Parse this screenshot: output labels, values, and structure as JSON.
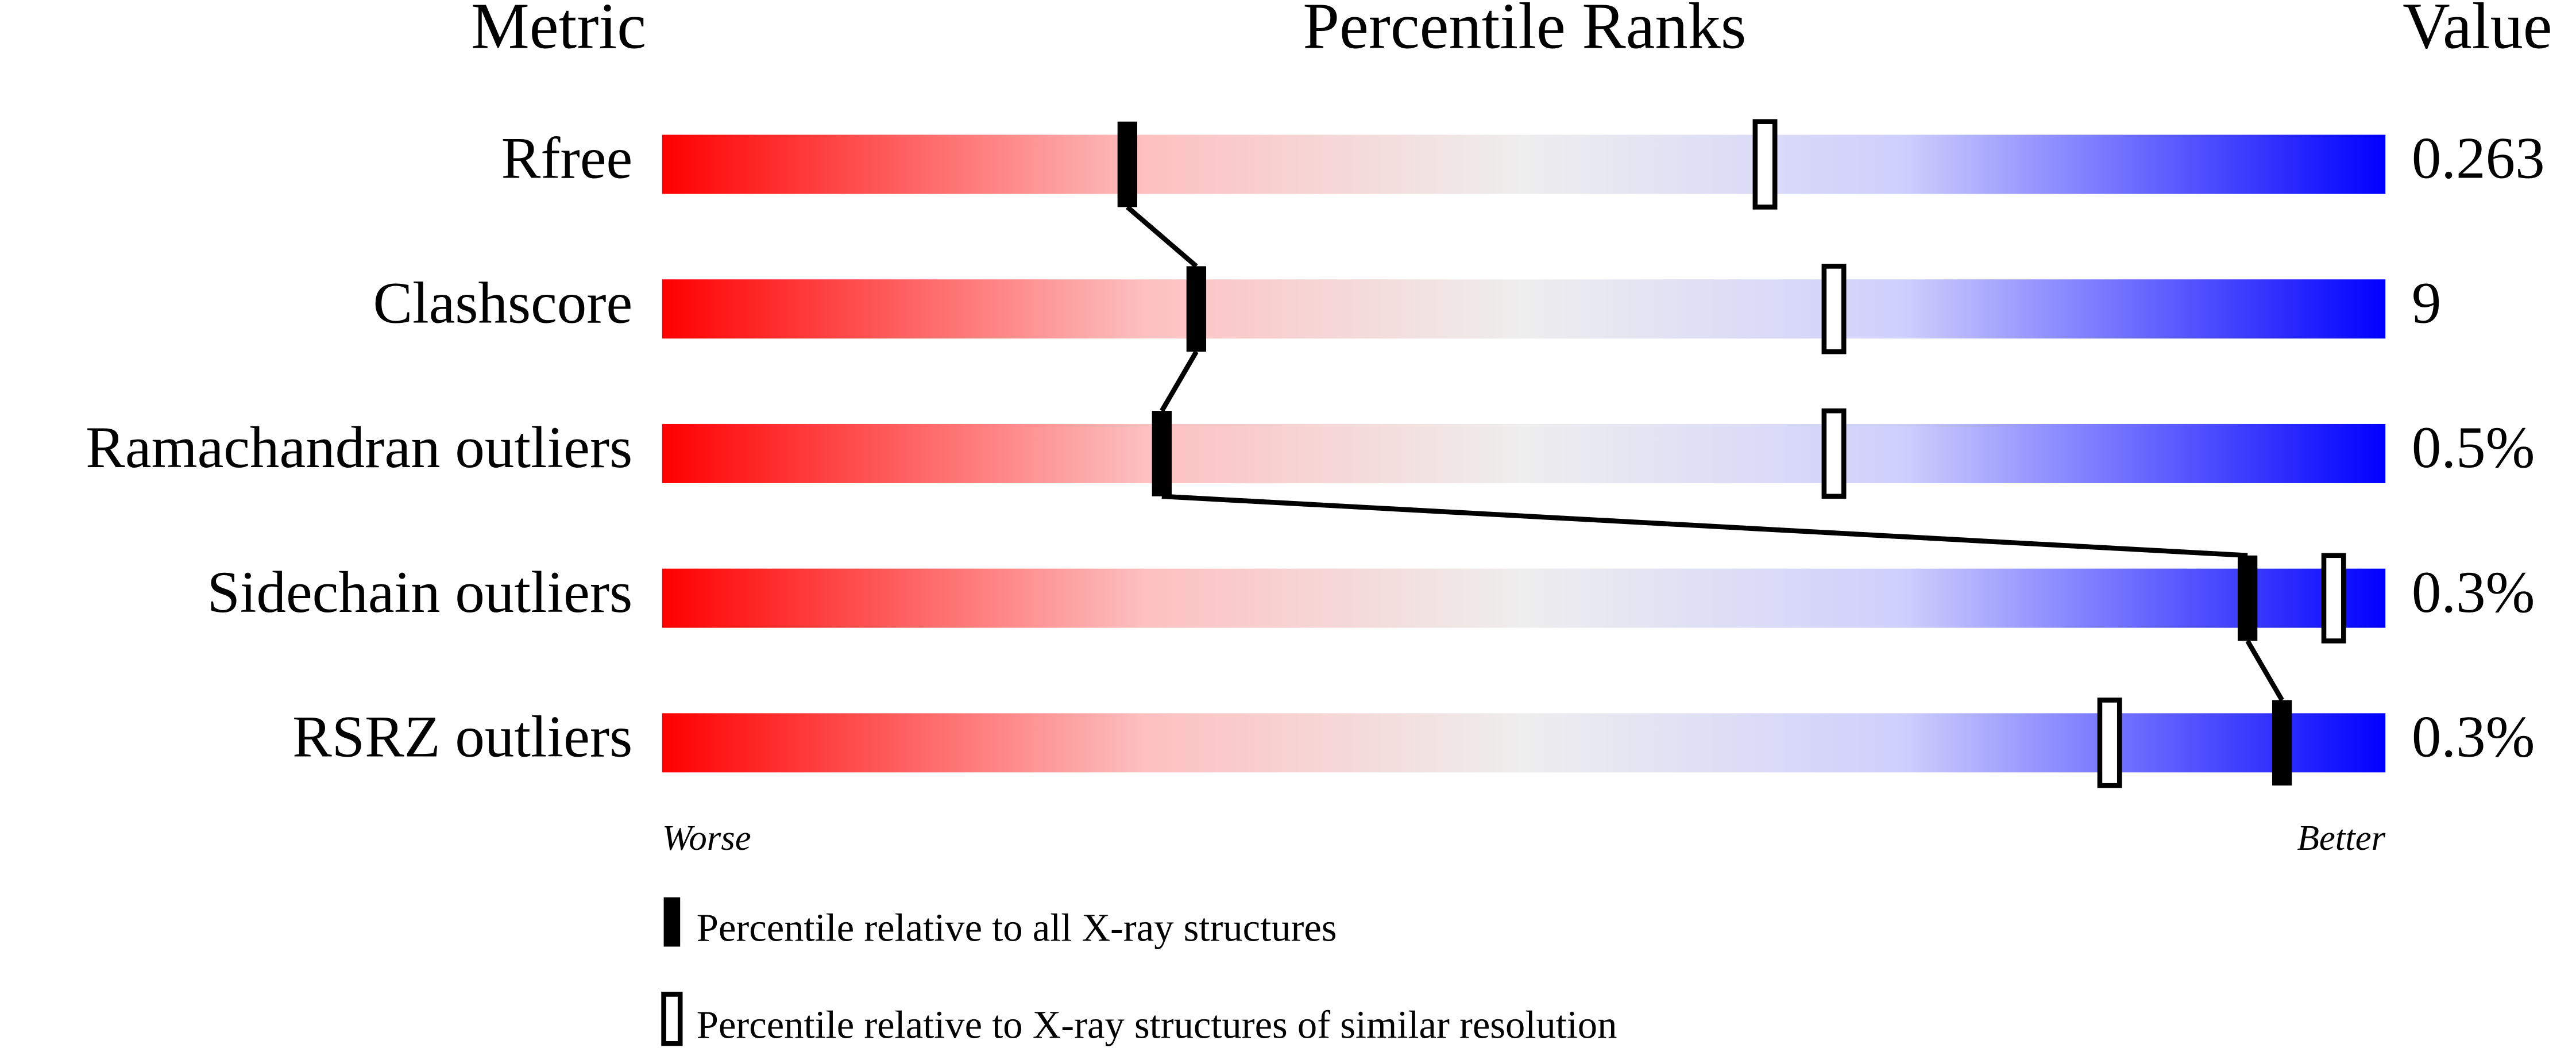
{
  "chart_data": {
    "type": "percentile",
    "headers": {
      "metric": "Metric",
      "ranks": "Percentile Ranks",
      "value": "Value"
    },
    "categories": [
      "Rfree",
      "Clashscore",
      "Ramachandran outliers",
      "Sidechain outliers",
      "RSRZ outliers"
    ],
    "metric_values": [
      "0.263",
      "9",
      "0.5%",
      "0.3%",
      "0.3%"
    ],
    "series": [
      {
        "name": "Percentile relative to all X-ray structures",
        "style": "filled",
        "values": [
          27,
          31,
          29,
          92,
          94
        ]
      },
      {
        "name": "Percentile relative to X-ray structures of similar resolution",
        "style": "open",
        "values": [
          64,
          68,
          68,
          97,
          84
        ]
      }
    ],
    "xlim": [
      0,
      100
    ],
    "worse_label": "Worse",
    "better_label": "Better"
  }
}
